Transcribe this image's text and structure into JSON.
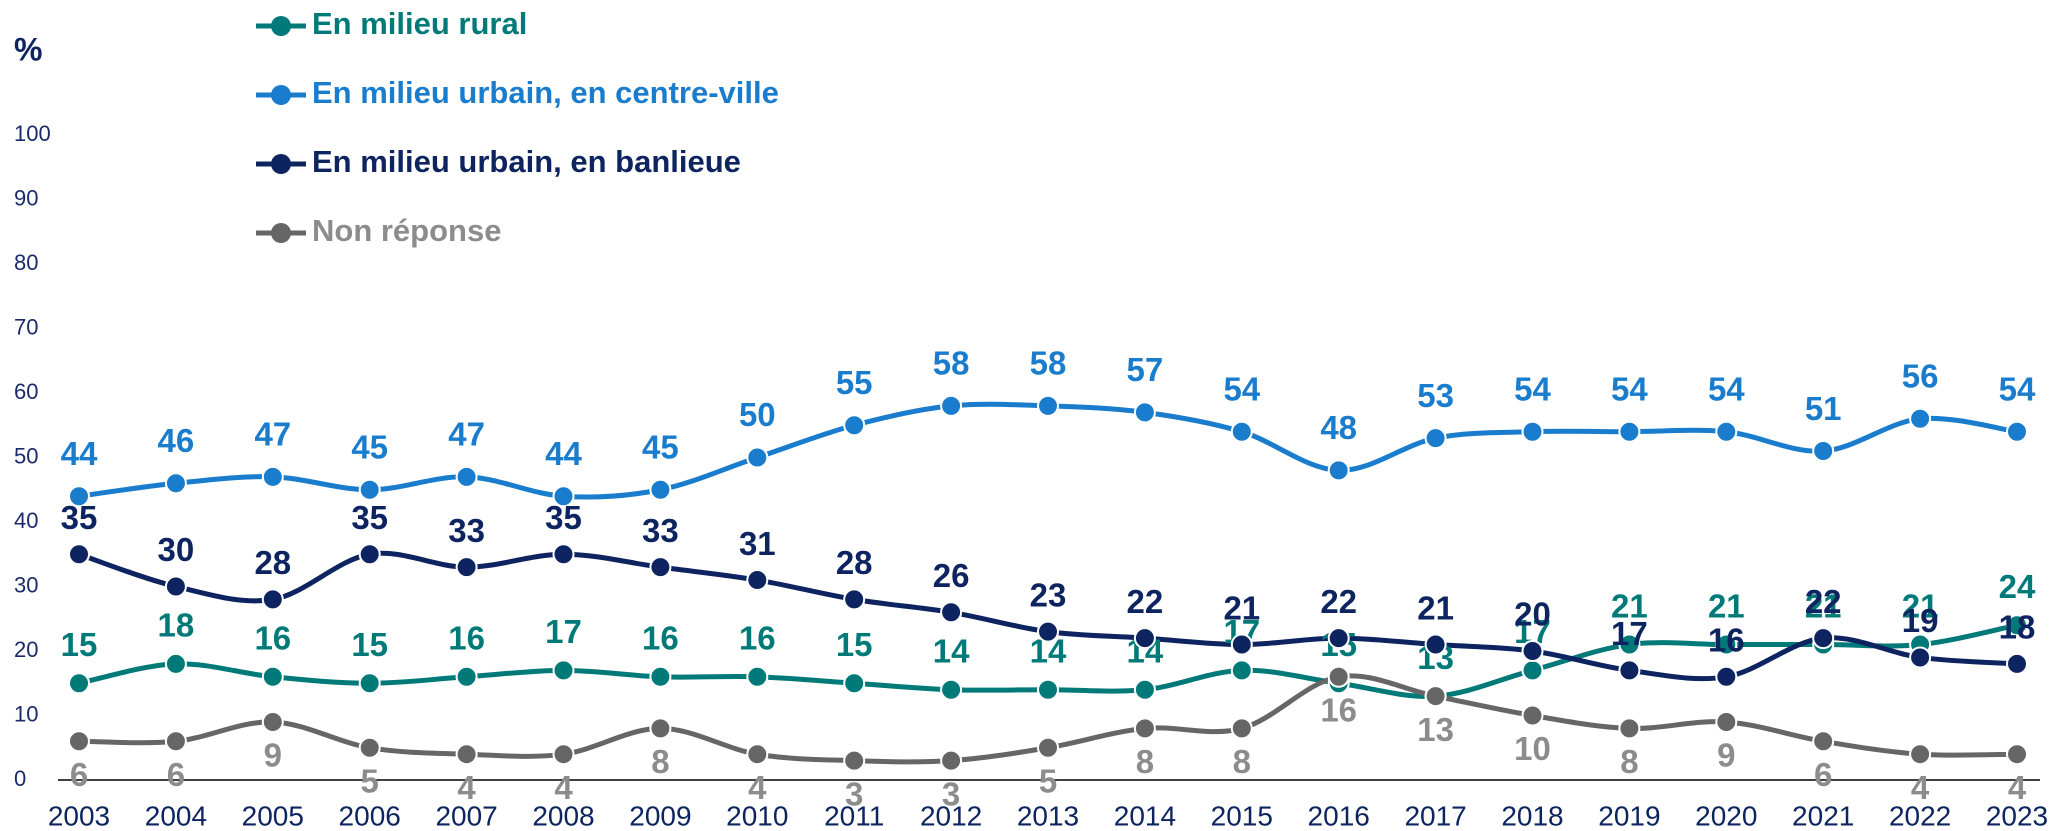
{
  "chart_data": {
    "type": "line",
    "y_label": "%",
    "categories": [
      "2003",
      "2004",
      "2005",
      "2006",
      "2007",
      "2008",
      "2009",
      "2010",
      "2011",
      "2012",
      "2013",
      "2014",
      "2015",
      "2016",
      "2017",
      "2018",
      "2019",
      "2020",
      "2021",
      "2022",
      "2023"
    ],
    "series": [
      {
        "name": "En milieu rural",
        "color": "#007a78",
        "values": [
          15,
          18,
          16,
          15,
          16,
          17,
          16,
          16,
          15,
          14,
          14,
          14,
          17,
          15,
          13,
          17,
          21,
          21,
          21,
          21,
          24
        ]
      },
      {
        "name": "En milieu urbain, en centre-ville",
        "color": "#1a7ccc",
        "values": [
          44,
          46,
          47,
          45,
          47,
          44,
          45,
          50,
          55,
          58,
          58,
          57,
          54,
          48,
          53,
          54,
          54,
          54,
          51,
          56,
          54
        ]
      },
      {
        "name": "En milieu urbain, en banlieue",
        "color": "#0d2461",
        "values": [
          35,
          30,
          28,
          35,
          33,
          35,
          33,
          31,
          28,
          26,
          23,
          22,
          21,
          22,
          21,
          20,
          17,
          16,
          22,
          19,
          18
        ]
      },
      {
        "name": "Non réponse",
        "color": "#666666",
        "values": [
          6,
          6,
          9,
          5,
          4,
          4,
          8,
          4,
          3,
          3,
          5,
          8,
          8,
          16,
          13,
          10,
          8,
          9,
          6,
          4,
          4
        ]
      }
    ],
    "ylim": [
      0,
      100
    ],
    "yticks": [
      0,
      10,
      20,
      30,
      40,
      50,
      60,
      70,
      80,
      90,
      100
    ],
    "legend": "top-left",
    "grid": false
  }
}
